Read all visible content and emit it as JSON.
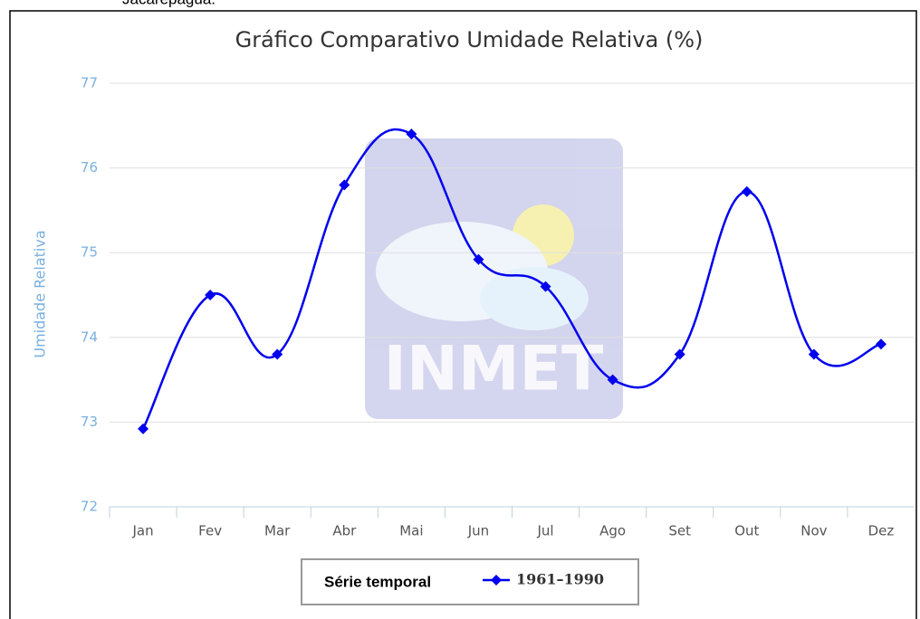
{
  "header_text": "Jacarepaguá.",
  "chart_data": {
    "type": "spline",
    "title": "Gráfico Comparativo Umidade Relativa (%)",
    "y_label": "Umidade Relativa",
    "watermark": "INMET",
    "legend_title": "Série temporal",
    "categories": [
      "Jan",
      "Fev",
      "Mar",
      "Abr",
      "Mai",
      "Jun",
      "Jul",
      "Ago",
      "Set",
      "Out",
      "Nov",
      "Dez"
    ],
    "series": [
      {
        "name": "1961–1990",
        "color": "#0000ee",
        "values": [
          72.92,
          74.5,
          73.8,
          75.8,
          76.4,
          74.92,
          74.6,
          73.5,
          73.8,
          75.72,
          73.8,
          73.92
        ]
      }
    ],
    "ylim": [
      72,
      77
    ],
    "yticks": [
      72,
      73,
      74,
      75,
      76,
      77
    ],
    "grid": true
  }
}
